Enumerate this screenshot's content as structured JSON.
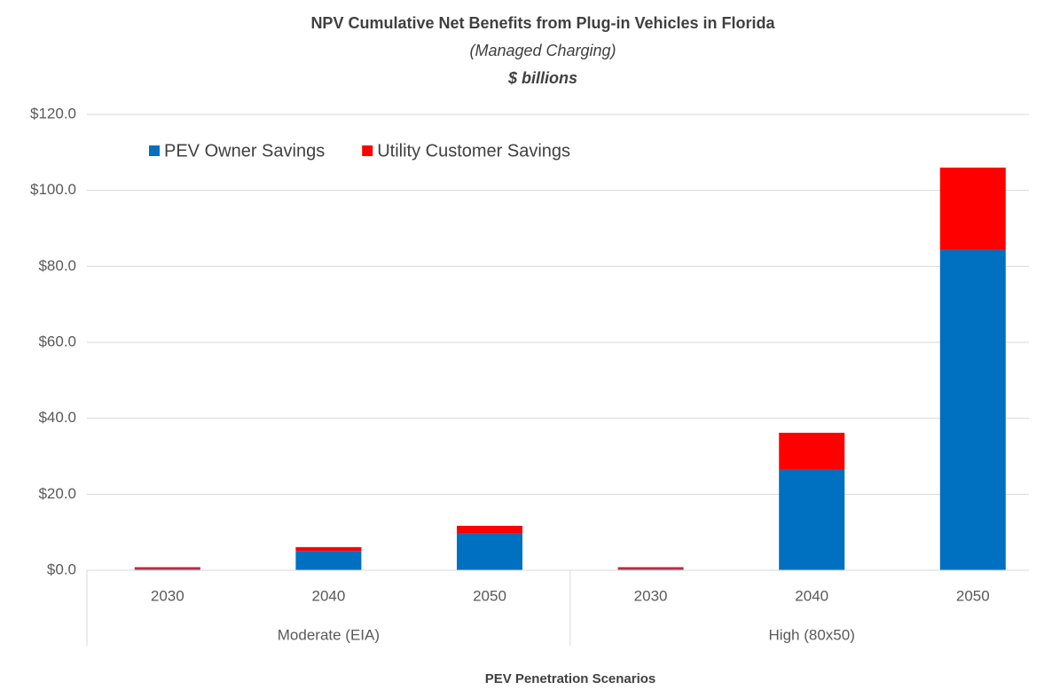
{
  "chart_data": {
    "type": "stacked_bar",
    "title": "NPV Cumulative Net Benefits from Plug-in Vehicles in Florida",
    "subtitle": "(Managed Charging)",
    "unit_label": "$ billions",
    "x_label": "PEV Penetration Scenarios",
    "categories": [
      "2030",
      "2040",
      "2050",
      "2030",
      "2040",
      "2050"
    ],
    "group_labels": [
      "Moderate (EIA)",
      "High (80x50)"
    ],
    "series": [
      {
        "name": "PEV Owner Savings",
        "color": "#0070c0",
        "values": [
          0.4,
          5.1,
          9.6,
          0.4,
          26.4,
          84.3
        ]
      },
      {
        "name": "Utility Customer Savings",
        "color": "#ff0000",
        "values": [
          0.4,
          1.0,
          2.1,
          0.4,
          9.8,
          21.7
        ]
      }
    ],
    "ylim": [
      0,
      120
    ],
    "yticks": [
      {
        "value": 0,
        "label": "$0.0"
      },
      {
        "value": 20,
        "label": "$20.0"
      },
      {
        "value": 40,
        "label": "$40.0"
      },
      {
        "value": 60,
        "label": "$60.0"
      },
      {
        "value": 80,
        "label": "$80.0"
      },
      {
        "value": 100,
        "label": "$100.0"
      },
      {
        "value": 120,
        "label": "$120.0"
      }
    ],
    "grid": true,
    "legend": "top-left"
  }
}
